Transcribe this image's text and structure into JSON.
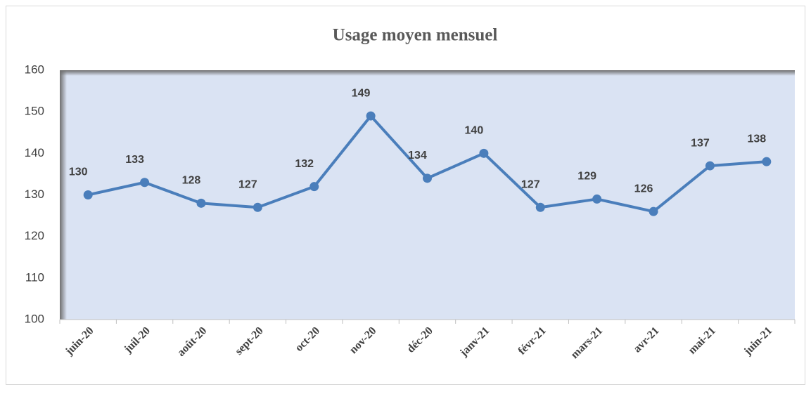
{
  "chart_data": {
    "type": "line",
    "title": "Usage moyen mensuel",
    "categories": [
      "juin-20",
      "juil-20",
      "août-20",
      "sept-20",
      "oct-20",
      "nov-20",
      "déc-20",
      "janv-21",
      "févr-21",
      "mars-21",
      "avr-21",
      "mai-21",
      "juin-21"
    ],
    "series": [
      {
        "name": "Usage moyen",
        "color": "#4a7ebb",
        "values": [
          130,
          133,
          128,
          127,
          132,
          149,
          134,
          140,
          127,
          129,
          126,
          137,
          138
        ]
      }
    ],
    "ylim": [
      100,
      160
    ],
    "yticks": [
      100,
      110,
      120,
      130,
      140,
      150,
      160
    ],
    "grid": false,
    "legend": false,
    "plot_background": "#dae3f3"
  }
}
